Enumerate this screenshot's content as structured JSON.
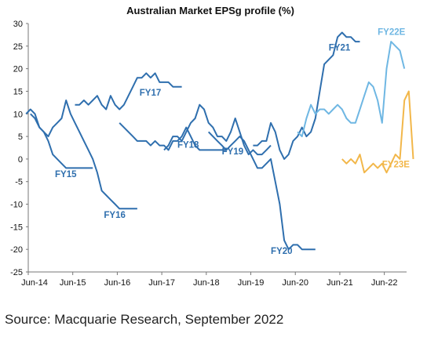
{
  "chart_data": {
    "type": "line",
    "title": "Australian Market EPSg profile (%)",
    "x_tick_labels": [
      "Jun-14",
      "Jun-15",
      "Jun-16",
      "Jun-17",
      "Jun-18",
      "Jun-19",
      "Jun-20",
      "Jun-21",
      "Jun-22"
    ],
    "ylim": [
      -25,
      30
    ],
    "y_ticks": [
      30,
      25,
      20,
      15,
      10,
      5,
      0,
      -5,
      -10,
      -15,
      -20,
      -25
    ],
    "grid": false,
    "legend": "inline labels",
    "series": [
      {
        "name": "FY15",
        "color": "#2f6fae",
        "x": [
          2014.4,
          2014.5,
          2014.6,
          2014.7,
          2014.8,
          2014.9,
          2015.0,
          2015.1,
          2015.2,
          2015.3,
          2015.4,
          2015.5,
          2015.6,
          2015.7,
          2015.8,
          2015.9
        ],
        "y": [
          10,
          11,
          10,
          7,
          6,
          4,
          1,
          0,
          -1,
          -2,
          -2,
          -2,
          -2,
          -2,
          -2,
          -2
        ]
      },
      {
        "name": "FY16",
        "color": "#2f6fae",
        "x": [
          2014.5,
          2014.6,
          2014.7,
          2014.8,
          2014.9,
          2015.0,
          2015.1,
          2015.2,
          2015.3,
          2015.4,
          2015.5,
          2015.6,
          2015.7,
          2015.8,
          2015.9,
          2016.0,
          2016.1,
          2016.2,
          2016.3,
          2016.4,
          2016.5,
          2016.6,
          2016.7,
          2016.8,
          2016.9
        ],
        "y": [
          10,
          9,
          7,
          6,
          5,
          7,
          8,
          9,
          13,
          10,
          8,
          6,
          4,
          2,
          0,
          -3,
          -7,
          -8,
          -9,
          -10,
          -11,
          -11,
          -11,
          -11,
          -11
        ]
      },
      {
        "name": "FY17",
        "color": "#2f6fae",
        "x": [
          2015.5,
          2015.6,
          2015.7,
          2015.8,
          2015.9,
          2016.0,
          2016.1,
          2016.2,
          2016.3,
          2016.4,
          2016.5,
          2016.6,
          2016.7,
          2016.8,
          2016.9,
          2017.0,
          2017.1,
          2017.2,
          2017.3,
          2017.4,
          2017.5,
          2017.6,
          2017.7,
          2017.8,
          2017.9
        ],
        "y": [
          12,
          12,
          13,
          12,
          13,
          14,
          12,
          11,
          14,
          12,
          11,
          12,
          14,
          16,
          18,
          18,
          19,
          18,
          19,
          17,
          17,
          17,
          16,
          16,
          16
        ]
      },
      {
        "name": "FY18",
        "color": "#2f6fae",
        "x": [
          2016.5,
          2016.6,
          2016.7,
          2016.8,
          2016.9,
          2017.0,
          2017.1,
          2017.2,
          2017.3,
          2017.4,
          2017.5,
          2017.6,
          2017.7,
          2017.8,
          2017.9,
          2018.0,
          2018.1,
          2018.2,
          2018.3,
          2018.4,
          2018.5,
          2018.6,
          2018.7,
          2018.8,
          2018.9
        ],
        "y": [
          8,
          7,
          6,
          5,
          4,
          4,
          4,
          3,
          4,
          3,
          3,
          2,
          4,
          4,
          5,
          7,
          5,
          3,
          2,
          2,
          2,
          2,
          2,
          2,
          2
        ]
      },
      {
        "name": "FY19",
        "color": "#2f6fae",
        "x": [
          2017.5,
          2017.6,
          2017.7,
          2017.8,
          2017.9,
          2018.0,
          2018.1,
          2018.2,
          2018.3,
          2018.4,
          2018.5,
          2018.6,
          2018.7,
          2018.8,
          2018.9,
          2019.0,
          2019.1,
          2019.2,
          2019.3,
          2019.4,
          2019.5,
          2019.6,
          2019.7,
          2019.8,
          2019.9
        ],
        "y": [
          2,
          3,
          5,
          5,
          4,
          6,
          8,
          9,
          12,
          11,
          8,
          7,
          5,
          5,
          4,
          6,
          9,
          6,
          3,
          1,
          2,
          1,
          1,
          2,
          3
        ]
      },
      {
        "name": "FY20",
        "color": "#2f6fae",
        "x": [
          2018.5,
          2018.6,
          2018.7,
          2018.8,
          2018.9,
          2019.0,
          2019.1,
          2019.2,
          2019.3,
          2019.4,
          2019.5,
          2019.6,
          2019.7,
          2019.8,
          2019.9,
          2020.0,
          2020.1,
          2020.2,
          2020.3,
          2020.4,
          2020.5,
          2020.6,
          2020.7,
          2020.8,
          2020.9
        ],
        "y": [
          6,
          5,
          4,
          3,
          2,
          3,
          4,
          5,
          4,
          2,
          0,
          -2,
          -2,
          -1,
          0,
          -5,
          -10,
          -18,
          -20,
          -19,
          -19,
          -20,
          -20,
          -20,
          -20
        ]
      },
      {
        "name": "FY21",
        "color": "#2f6fae",
        "x": [
          2019.5,
          2019.6,
          2019.7,
          2019.8,
          2019.9,
          2020.0,
          2020.1,
          2020.2,
          2020.3,
          2020.4,
          2020.5,
          2020.6,
          2020.7,
          2020.8,
          2020.9,
          2021.0,
          2021.1,
          2021.2,
          2021.3,
          2021.4,
          2021.5,
          2021.6,
          2021.7,
          2021.8,
          2021.9
        ],
        "y": [
          3,
          3,
          4,
          4,
          8,
          6,
          2,
          0,
          1,
          4,
          5,
          7,
          5,
          6,
          9,
          15,
          21,
          22,
          23,
          27,
          28,
          27,
          27,
          26,
          26
        ]
      },
      {
        "name": "FY22E",
        "color": "#6fb7e3",
        "x": [
          2020.5,
          2020.6,
          2020.7,
          2020.8,
          2020.9,
          2021.0,
          2021.1,
          2021.2,
          2021.3,
          2021.4,
          2021.5,
          2021.6,
          2021.7,
          2021.8,
          2021.9,
          2022.0,
          2022.1,
          2022.2,
          2022.3,
          2022.4,
          2022.5,
          2022.6,
          2022.7,
          2022.8,
          2022.9
        ],
        "y": [
          6,
          5,
          9,
          12,
          10,
          11,
          11,
          10,
          11,
          12,
          11,
          9,
          8,
          8,
          11,
          14,
          17,
          16,
          13,
          8,
          20,
          26,
          25,
          24,
          20
        ]
      },
      {
        "name": "FY23E",
        "color": "#f2b74a",
        "x": [
          2021.5,
          2021.6,
          2021.7,
          2021.8,
          2021.9,
          2022.0,
          2022.1,
          2022.2,
          2022.3,
          2022.4,
          2022.5,
          2022.6,
          2022.7,
          2022.8,
          2022.9,
          2023.0,
          2023.1
        ],
        "y": [
          0,
          -1,
          0,
          -1,
          1,
          -3,
          -2,
          -1,
          -2,
          -1,
          -3,
          -1,
          1,
          0,
          13,
          15,
          0
        ]
      }
    ],
    "source": "Source: Macquarie Research, September 2022"
  }
}
